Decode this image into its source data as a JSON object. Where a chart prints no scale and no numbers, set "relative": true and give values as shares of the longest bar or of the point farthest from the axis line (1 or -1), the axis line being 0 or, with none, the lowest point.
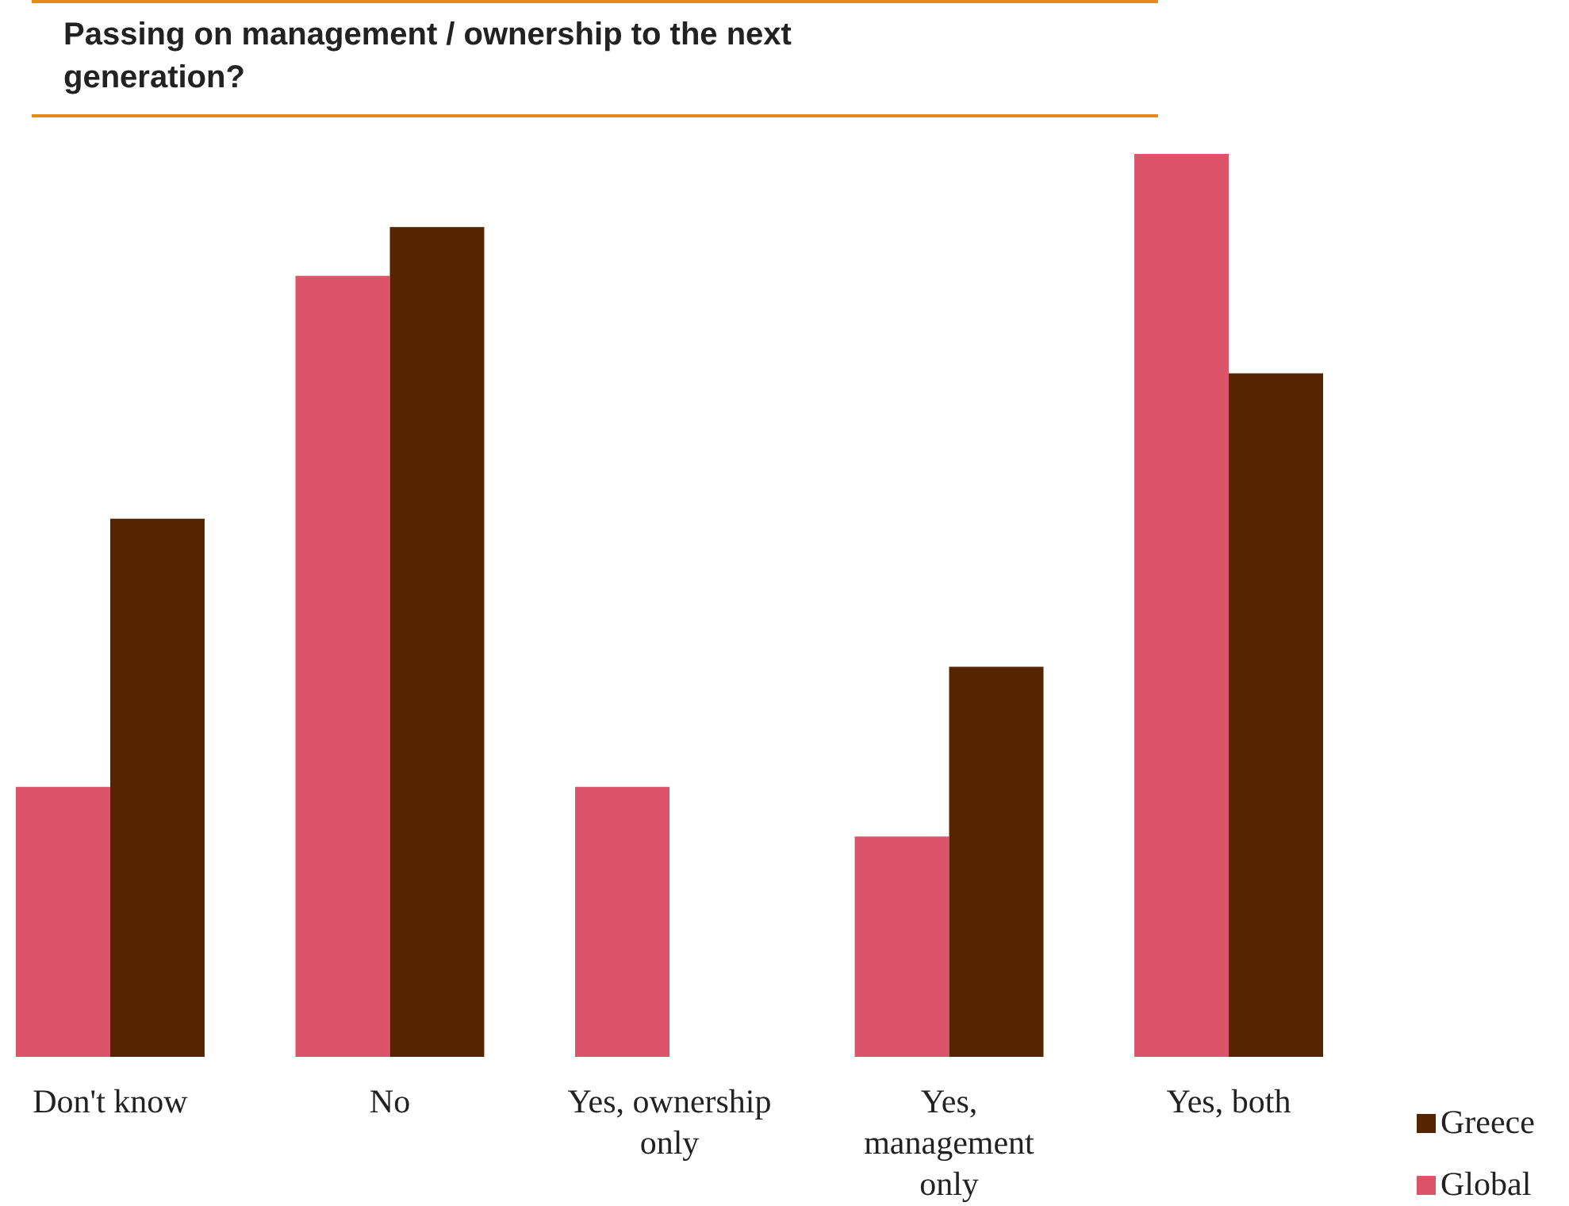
{
  "chart_data": {
    "type": "bar",
    "title": "Passing on management / ownership to the next generation?",
    "relative": true,
    "categories": [
      "Don't know",
      "No",
      "Yes, ownership only",
      "Yes, management only",
      "Yes, both"
    ],
    "series": [
      {
        "name": "Global",
        "color": "#dc546a",
        "values": [
          0.299,
          0.865,
          0.299,
          0.244,
          1
        ]
      },
      {
        "name": "Greece",
        "color": "#572400",
        "values": [
          0.596,
          0.919,
          0,
          0.432,
          0.757
        ]
      }
    ],
    "legend": "bottom right",
    "grid": false
  }
}
